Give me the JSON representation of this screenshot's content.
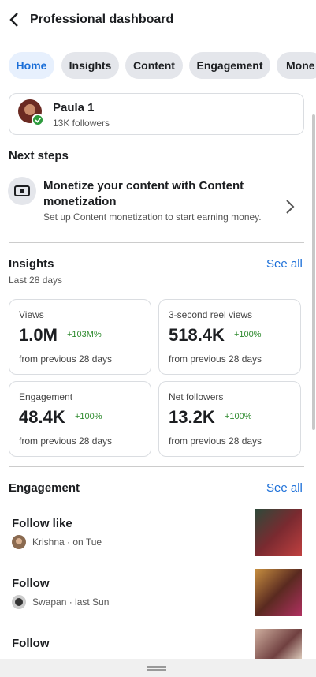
{
  "header": {
    "title": "Professional dashboard"
  },
  "tabs": [
    "Home",
    "Insights",
    "Content",
    "Engagement",
    "Mone"
  ],
  "profile": {
    "name": "Paula 1",
    "followers": "13K followers"
  },
  "next_steps": {
    "title": "Next steps",
    "item_title": "Monetize your content with Content monetization",
    "item_text": "Set up Content monetization to start earning money."
  },
  "insights": {
    "title": "Insights",
    "see_all": "See all",
    "period": "Last 28 days",
    "cards": [
      {
        "label": "Views",
        "value": "1.0M",
        "change": "+103M%",
        "note": "from previous 28 days"
      },
      {
        "label": "3-second reel views",
        "value": "518.4K",
        "change": "+100%",
        "note": "from previous 28 days"
      },
      {
        "label": "Engagement",
        "value": "48.4K",
        "change": "+100%",
        "note": "from previous 28 days"
      },
      {
        "label": "Net followers",
        "value": "13.2K",
        "change": "+100%",
        "note": "from previous 28 days"
      }
    ]
  },
  "engagement": {
    "title": "Engagement",
    "see_all": "See all",
    "items": [
      {
        "title": "Follow like",
        "meta": "Krishna · on Tue"
      },
      {
        "title": "Follow",
        "meta": "Swapan · last Sun"
      },
      {
        "title": "Follow"
      }
    ]
  }
}
